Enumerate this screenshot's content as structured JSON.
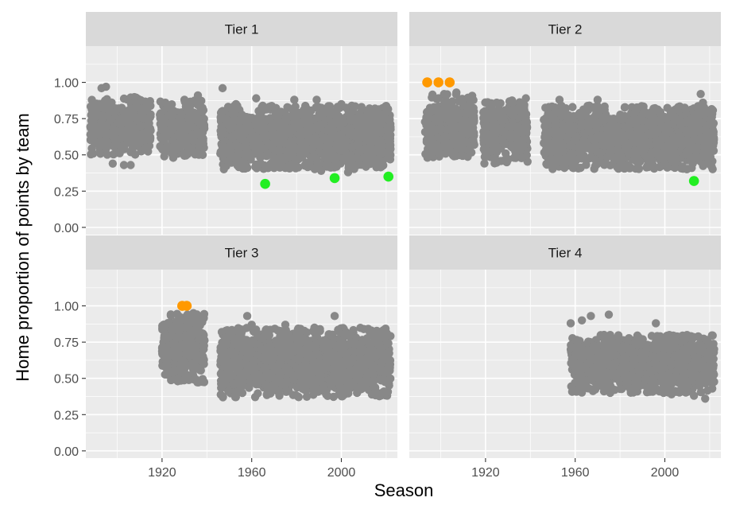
{
  "chart_data": {
    "type": "scatter",
    "title": "",
    "xlabel": "Season",
    "ylabel": "Home proportion of points by team",
    "xlim": [
      1886,
      2025
    ],
    "ylim": [
      -0.05,
      1.25
    ],
    "x_ticks": [
      1920,
      1960,
      2000
    ],
    "x_tick_labels": [
      "1920",
      "1960",
      "2000"
    ],
    "y_ticks": [
      0,
      0.25,
      0.5,
      0.75,
      1.0
    ],
    "y_tick_labels": [
      "0.00",
      "0.25",
      "0.50",
      "0.75",
      "1.00"
    ],
    "grid": true,
    "legend": "none",
    "colors": {
      "background": "#ebebeb",
      "grid": "#ffffff",
      "strip": "#d9d9d9",
      "point": "#888888",
      "high_outlier": "#ff9900",
      "low_outlier": "#22ee22"
    },
    "panels": [
      {
        "label": "Tier 1",
        "clusters": [
          {
            "x_range": [
              1888,
              1915
            ],
            "y_center": 0.7,
            "y_spread": 0.2,
            "count": 420
          },
          {
            "x_range": [
              1919,
              1939
            ],
            "y_center": 0.68,
            "y_spread": 0.2,
            "count": 420
          },
          {
            "x_range": [
              1946,
              2022
            ],
            "y_center": 0.62,
            "y_spread": 0.22,
            "count": 1700
          }
        ],
        "sparse_points": [
          {
            "x": 1893,
            "y": 0.96
          },
          {
            "x": 1895,
            "y": 0.97
          },
          {
            "x": 1898,
            "y": 0.44
          },
          {
            "x": 1903,
            "y": 0.43
          },
          {
            "x": 1906,
            "y": 0.43
          },
          {
            "x": 1913,
            "y": 0.86
          },
          {
            "x": 1921,
            "y": 0.49
          },
          {
            "x": 1925,
            "y": 0.48
          },
          {
            "x": 1930,
            "y": 0.88
          },
          {
            "x": 1936,
            "y": 0.91
          },
          {
            "x": 1947,
            "y": 0.96
          },
          {
            "x": 1953,
            "y": 0.85
          },
          {
            "x": 1962,
            "y": 0.89
          },
          {
            "x": 1970,
            "y": 0.41
          },
          {
            "x": 1975,
            "y": 0.41
          },
          {
            "x": 1979,
            "y": 0.88
          },
          {
            "x": 1989,
            "y": 0.88
          },
          {
            "x": 1991,
            "y": 0.39
          },
          {
            "x": 2000,
            "y": 0.85
          },
          {
            "x": 2003,
            "y": 0.38
          },
          {
            "x": 2009,
            "y": 0.83
          },
          {
            "x": 2015,
            "y": 0.82
          },
          {
            "x": 2018,
            "y": 0.42
          },
          {
            "x": 2021,
            "y": 0.74
          }
        ],
        "highlight_points": [
          {
            "x": 1966,
            "y": 0.3,
            "kind": "low"
          },
          {
            "x": 1997,
            "y": 0.34,
            "kind": "low"
          },
          {
            "x": 2021,
            "y": 0.35,
            "kind": "low"
          }
        ]
      },
      {
        "label": "Tier 2",
        "clusters": [
          {
            "x_range": [
              1893,
              1915
            ],
            "y_center": 0.7,
            "y_spread": 0.22,
            "count": 380
          },
          {
            "x_range": [
              1919,
              1939
            ],
            "y_center": 0.66,
            "y_spread": 0.22,
            "count": 380
          },
          {
            "x_range": [
              1946,
              2022
            ],
            "y_center": 0.62,
            "y_spread": 0.22,
            "count": 1700
          }
        ],
        "sparse_points": [
          {
            "x": 1894,
            "y": 0.49
          },
          {
            "x": 1897,
            "y": 0.52
          },
          {
            "x": 1907,
            "y": 0.93
          },
          {
            "x": 1910,
            "y": 0.85
          },
          {
            "x": 1925,
            "y": 0.86
          },
          {
            "x": 1938,
            "y": 0.89
          },
          {
            "x": 1953,
            "y": 0.88
          },
          {
            "x": 1970,
            "y": 0.88
          },
          {
            "x": 1981,
            "y": 0.48
          },
          {
            "x": 1987,
            "y": 0.46
          },
          {
            "x": 1995,
            "y": 0.82
          },
          {
            "x": 2006,
            "y": 0.83
          },
          {
            "x": 2012,
            "y": 0.41
          },
          {
            "x": 2016,
            "y": 0.92
          },
          {
            "x": 2017,
            "y": 0.86
          },
          {
            "x": 2020,
            "y": 0.79
          }
        ],
        "highlight_points": [
          {
            "x": 1894,
            "y": 1.0,
            "kind": "high"
          },
          {
            "x": 1899,
            "y": 1.0,
            "kind": "high"
          },
          {
            "x": 1904,
            "y": 1.0,
            "kind": "high"
          },
          {
            "x": 2013,
            "y": 0.32,
            "kind": "low"
          }
        ]
      },
      {
        "label": "Tier 3",
        "clusters": [
          {
            "x_range": [
              1920,
              1939
            ],
            "y_center": 0.71,
            "y_spread": 0.24,
            "count": 450
          },
          {
            "x_range": [
              1946,
              2022
            ],
            "y_center": 0.61,
            "y_spread": 0.24,
            "count": 1700
          }
        ],
        "sparse_points": [
          {
            "x": 1927,
            "y": 0.48
          },
          {
            "x": 1934,
            "y": 0.95
          },
          {
            "x": 1936,
            "y": 0.93
          },
          {
            "x": 1956,
            "y": 0.45
          },
          {
            "x": 1958,
            "y": 0.93
          },
          {
            "x": 1960,
            "y": 0.87
          },
          {
            "x": 1963,
            "y": 0.47
          },
          {
            "x": 1975,
            "y": 0.87
          },
          {
            "x": 1988,
            "y": 0.85
          },
          {
            "x": 1997,
            "y": 0.93
          },
          {
            "x": 2002,
            "y": 0.82
          },
          {
            "x": 2007,
            "y": 0.4
          },
          {
            "x": 2010,
            "y": 0.84
          },
          {
            "x": 2014,
            "y": 0.39
          },
          {
            "x": 2019,
            "y": 0.41
          }
        ],
        "highlight_points": [
          {
            "x": 1929,
            "y": 1.0,
            "kind": "high"
          },
          {
            "x": 1931,
            "y": 1.0,
            "kind": "high"
          }
        ]
      },
      {
        "label": "Tier 4",
        "clusters": [
          {
            "x_range": [
              1958,
              2022
            ],
            "y_center": 0.6,
            "y_spread": 0.2,
            "count": 1400
          }
        ],
        "sparse_points": [
          {
            "x": 1958,
            "y": 0.88
          },
          {
            "x": 1963,
            "y": 0.9
          },
          {
            "x": 1967,
            "y": 0.93
          },
          {
            "x": 1971,
            "y": 0.45
          },
          {
            "x": 1975,
            "y": 0.94
          },
          {
            "x": 1989,
            "y": 0.45
          },
          {
            "x": 1996,
            "y": 0.88
          },
          {
            "x": 2003,
            "y": 0.39
          },
          {
            "x": 2013,
            "y": 0.38
          },
          {
            "x": 2018,
            "y": 0.36
          },
          {
            "x": 2020,
            "y": 0.72
          }
        ],
        "highlight_points": []
      }
    ]
  }
}
